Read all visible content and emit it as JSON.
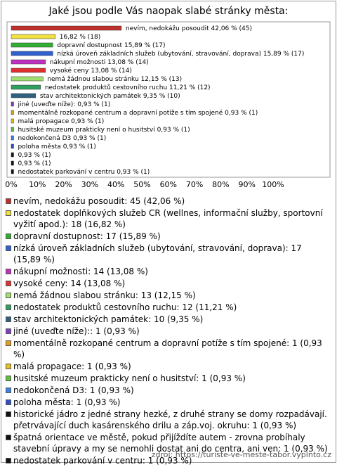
{
  "chart_data": {
    "type": "bar",
    "orientation": "horizontal",
    "title": "Jaké jsou podle Vás naopak slabé stránky města:",
    "categories": [
      "nevím, nedokážu posoudit",
      null,
      "dopravní dostupnost",
      "nízká úroveň základních služeb (ubytování, stravování, doprava)",
      "nákupní možnosti",
      "vysoké ceny",
      "nemá žádnou slabou stránku",
      "nedostatek produktů cestovního ruchu",
      "stav architektonických památek",
      "jiné (uveďte níže):",
      "momentálně rozkopané centrum a dopravní potíže s tím spojené",
      "malá propagace",
      "husitské muzeum prakticky není o husitství",
      "nedokončená D3",
      "poloha města",
      null,
      null,
      "nedostatek parkování v centru"
    ],
    "values": [
      42.06,
      16.82,
      15.89,
      15.89,
      13.08,
      13.08,
      12.15,
      11.21,
      9.35,
      0.93,
      0.93,
      0.93,
      0.93,
      0.93,
      0.93,
      0.93,
      0.93,
      0.93
    ],
    "value_labels": [
      "42,06 % (45)",
      "16,82 % (18)",
      "15,89 % (17)",
      "15,89 % (17)",
      "13,08 % (14)",
      "13,08 % (14)",
      "12,15 % (13)",
      "11,21 % (12)",
      "9,35 % (10)",
      "0,93 % (1)",
      "0,93 % (1)",
      "0,93 % (1)",
      "0,93 % (1)",
      "0,93 % (1)",
      "0,93 % (1)",
      "0,93 % (1)",
      "0,93 % (1)",
      "0,93 % (1)"
    ],
    "colors": [
      "#c0302a",
      "#f0e040",
      "#30b030",
      "#3060d0",
      "#c030c0",
      "#e03030",
      "#a0e070",
      "#30a060",
      "#306080",
      "#8040c0",
      "#e0a020",
      "#e8c020",
      "#60c040",
      "#4080e0",
      "#3050c0",
      "#111111",
      "#111111",
      "#111111"
    ],
    "xlim": [
      0,
      100
    ],
    "xticks": [
      {
        "value": 0,
        "label": "0%"
      },
      {
        "value": 10,
        "label": "10%"
      },
      {
        "value": 20,
        "label": "20%"
      },
      {
        "value": 30,
        "label": "30%"
      },
      {
        "value": 40,
        "label": "40%"
      },
      {
        "value": 50,
        "label": "50%"
      },
      {
        "value": 60,
        "label": "60%"
      },
      {
        "value": 70,
        "label": "70%"
      },
      {
        "value": 80,
        "label": "80%"
      },
      {
        "value": 90,
        "label": "90%"
      },
      {
        "value": 100,
        "label": "100%"
      }
    ],
    "legend": [
      "nevím, nedokážu posoudit: 45 (42,06 %)",
      "nedostatek doplňkových služeb CR (wellnes, informační služby, sportovní vyžití apod.): 18 (16,82 %)",
      "dopravní dostupnost: 17 (15,89 %)",
      "nízká úroveň základních služeb (ubytování, stravování, doprava): 17 (15,89 %)",
      "nákupní možnosti: 14 (13,08 %)",
      "vysoké ceny: 14 (13,08 %)",
      "nemá žádnou slabou stránku: 13 (12,15 %)",
      "nedostatek produktů cestovního ruchu: 12 (11,21 %)",
      "stav architektonických památek: 10 (9,35 %)",
      "jiné (uveďte níže):: 1 (0,93 %)",
      "momentálně rozkopané centrum a dopravní potíže s tím spojené: 1 (0,93 %)",
      "malá propagace: 1 (0,93 %)",
      "husitské muzeum prakticky není o husitství: 1 (0,93 %)",
      "nedokončená D3: 1 (0,93 %)",
      "poloha města: 1 (0,93 %)",
      "historické jádro z jedné strany hezké, z druhé strany se domy rozpadávají. přetrvávající duch kasárenského drilu a záp.voj. okruhu: 1 (0,93 %)",
      "špatná orientace ve městě, pokud přijíždíte autem - zrovna probíhaly stavební úpravy a my se nemohli dostat ani do centra, ani ven: 1 (0,93 %)",
      "nedostatek parkování v centru: 1 (0,93 %)"
    ],
    "source": "zdroj: https://turiste-ve-meste-tabor.vyplnto.cz"
  }
}
